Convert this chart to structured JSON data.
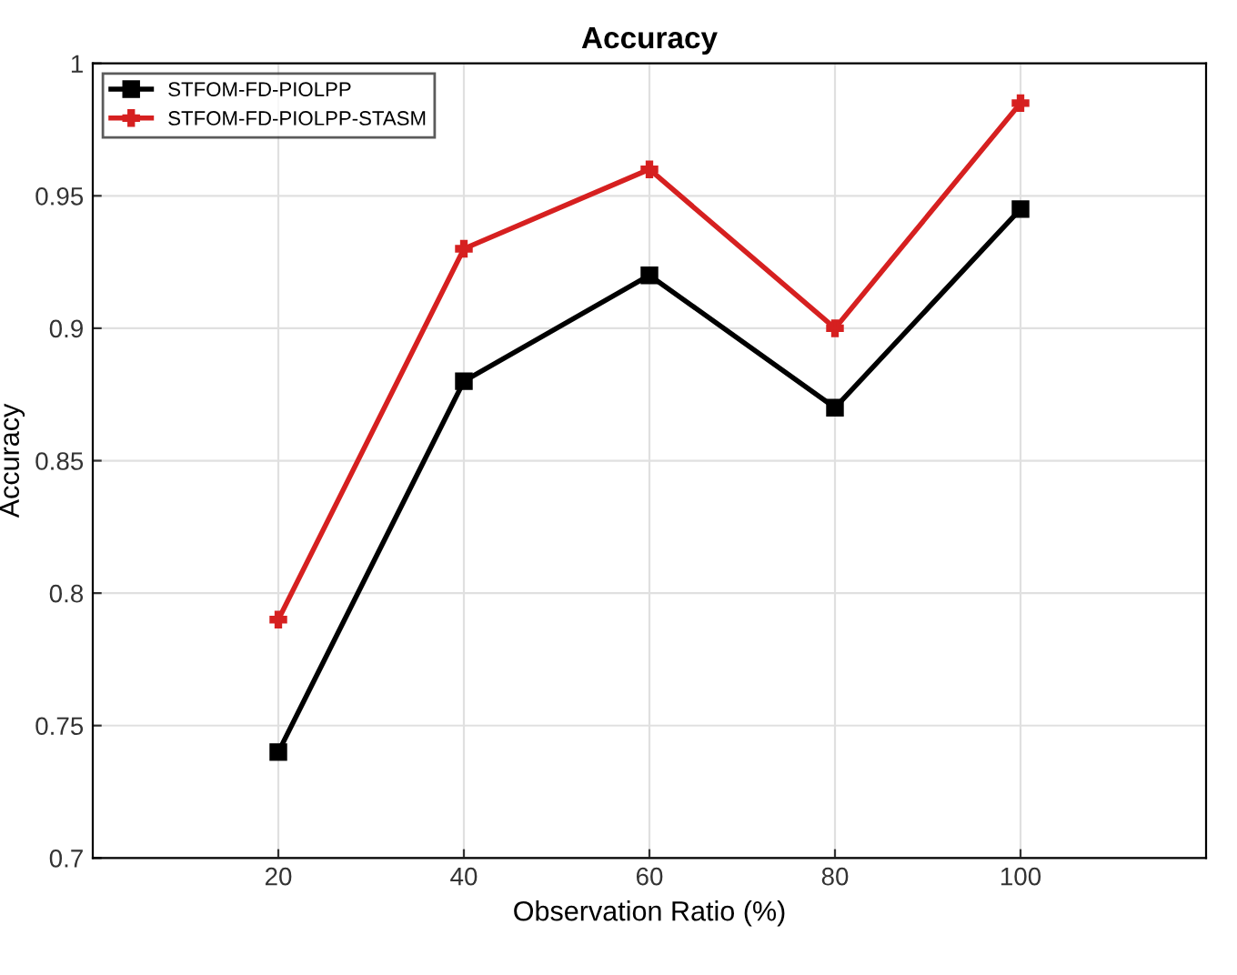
{
  "chart_data": {
    "type": "line",
    "title": "Accuracy",
    "xlabel": "Observation Ratio (%)",
    "ylabel": "Accuracy",
    "x": [
      20,
      40,
      60,
      80,
      100
    ],
    "xlim": [
      0,
      120
    ],
    "xticks": [
      20,
      40,
      60,
      80,
      100
    ],
    "ylim": [
      0.7,
      1
    ],
    "yticks": [
      0.7,
      0.75,
      0.8,
      0.85,
      0.9,
      0.95,
      1
    ],
    "grid": true,
    "legend": "top left",
    "line_style": "solid",
    "series": [
      {
        "name": "STFOM-FD-PIOLPP",
        "color": "#000000",
        "marker": "square",
        "values": [
          0.74,
          0.88,
          0.92,
          0.87,
          0.945
        ]
      },
      {
        "name": "STFOM-FD-PIOLPP-STASM",
        "color": "#d62020",
        "marker": "cross",
        "values": [
          0.79,
          0.93,
          0.96,
          0.9,
          0.985
        ]
      }
    ]
  }
}
